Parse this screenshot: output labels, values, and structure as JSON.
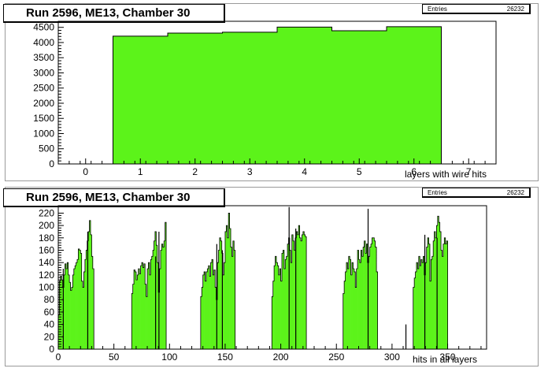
{
  "chart_data": [
    {
      "type": "bar",
      "title": "Run 2596, ME13, Chamber 30",
      "xlabel": "layers with wire hits",
      "ylabel": "",
      "stats": {
        "label": "Entries",
        "value": "26232"
      },
      "fill_color": "#5cf31a",
      "xlim": [
        -0.5,
        7.5
      ],
      "ylim": [
        0,
        4700
      ],
      "x_ticks": [
        "0",
        "1",
        "2",
        "3",
        "4",
        "5",
        "6",
        "7"
      ],
      "y_ticks": [
        "0",
        "500",
        "1000",
        "1500",
        "2000",
        "2500",
        "3000",
        "3500",
        "4000",
        "4500"
      ],
      "categories": [
        "1",
        "2",
        "3",
        "4",
        "5",
        "6"
      ],
      "values": [
        4210,
        4310,
        4340,
        4510,
        4390,
        4520
      ]
    },
    {
      "type": "bar",
      "title": "Run 2596, ME13, Chamber 30",
      "xlabel": "hits in all layers",
      "ylabel": "",
      "stats": {
        "label": "Entries",
        "value": "26232"
      },
      "fill_color": "#5cf31a",
      "xlim": [
        0,
        385
      ],
      "ylim": [
        0,
        232
      ],
      "x_ticks": [
        "0",
        "50",
        "100",
        "150",
        "200",
        "250",
        "300",
        "350"
      ],
      "y_ticks": [
        "0",
        "20",
        "40",
        "60",
        "80",
        "100",
        "120",
        "140",
        "160",
        "180",
        "200",
        "220"
      ],
      "groups": [
        {
          "start": 0,
          "values": [
            55,
            110,
            118,
            112,
            100,
            120,
            138,
            130,
            140,
            120,
            108,
            95,
            100,
            120,
            130,
            135,
            140,
            145,
            162,
            160,
            155,
            110,
            100,
            125,
            145,
            160,
            175,
            190,
            208,
            185,
            150,
            130
          ]
        },
        {
          "start": 66,
          "values": [
            90,
            105,
            128,
            125,
            112,
            120,
            130,
            122,
            135,
            140,
            132,
            138,
            105,
            85,
            130,
            140,
            120,
            145,
            150,
            160,
            175,
            190,
            168,
            140,
            92,
            130,
            160,
            170,
            165,
            175,
            205
          ]
        },
        {
          "start": 128,
          "values": [
            85,
            100,
            120,
            125,
            110,
            125,
            130,
            135,
            118,
            140,
            145,
            120,
            128,
            100,
            80,
            140,
            160,
            180,
            175,
            155,
            120,
            140,
            190,
            200,
            180,
            220,
            195,
            165,
            150,
            175,
            160
          ]
        },
        {
          "start": 192,
          "values": [
            85,
            110,
            135,
            150,
            140,
            135,
            120,
            130,
            110,
            155,
            160,
            130,
            145,
            150,
            170,
            180,
            160,
            140,
            185,
            175,
            160,
            180,
            190,
            185,
            200,
            180,
            175,
            185,
            190,
            185,
            182
          ]
        },
        {
          "start": 256,
          "values": [
            90,
            110,
            125,
            140,
            130,
            150,
            145,
            120,
            140,
            130,
            125,
            100,
            130,
            160,
            145,
            140,
            160,
            150,
            165,
            175,
            155,
            170,
            140,
            150,
            165,
            170,
            180,
            180,
            175,
            165,
            125
          ]
        },
        {
          "start": 319,
          "values": [
            100,
            115,
            125,
            140,
            130,
            150,
            135,
            145,
            140,
            150,
            120,
            140,
            165,
            180,
            170,
            110,
            145,
            150,
            175,
            190,
            180,
            200,
            215,
            205,
            190,
            160,
            150,
            170,
            180,
            170,
            175
          ]
        }
      ],
      "spikes": [
        {
          "x": 4,
          "y": 130
        },
        {
          "x": 26,
          "y": 190
        },
        {
          "x": 87,
          "y": 150
        },
        {
          "x": 90,
          "y": 190
        },
        {
          "x": 142,
          "y": 170
        },
        {
          "x": 147,
          "y": 160
        },
        {
          "x": 207,
          "y": 230
        },
        {
          "x": 213,
          "y": 195
        },
        {
          "x": 278,
          "y": 227
        },
        {
          "x": 312,
          "y": 40
        },
        {
          "x": 329,
          "y": 185
        },
        {
          "x": 340,
          "y": 180
        }
      ]
    }
  ]
}
